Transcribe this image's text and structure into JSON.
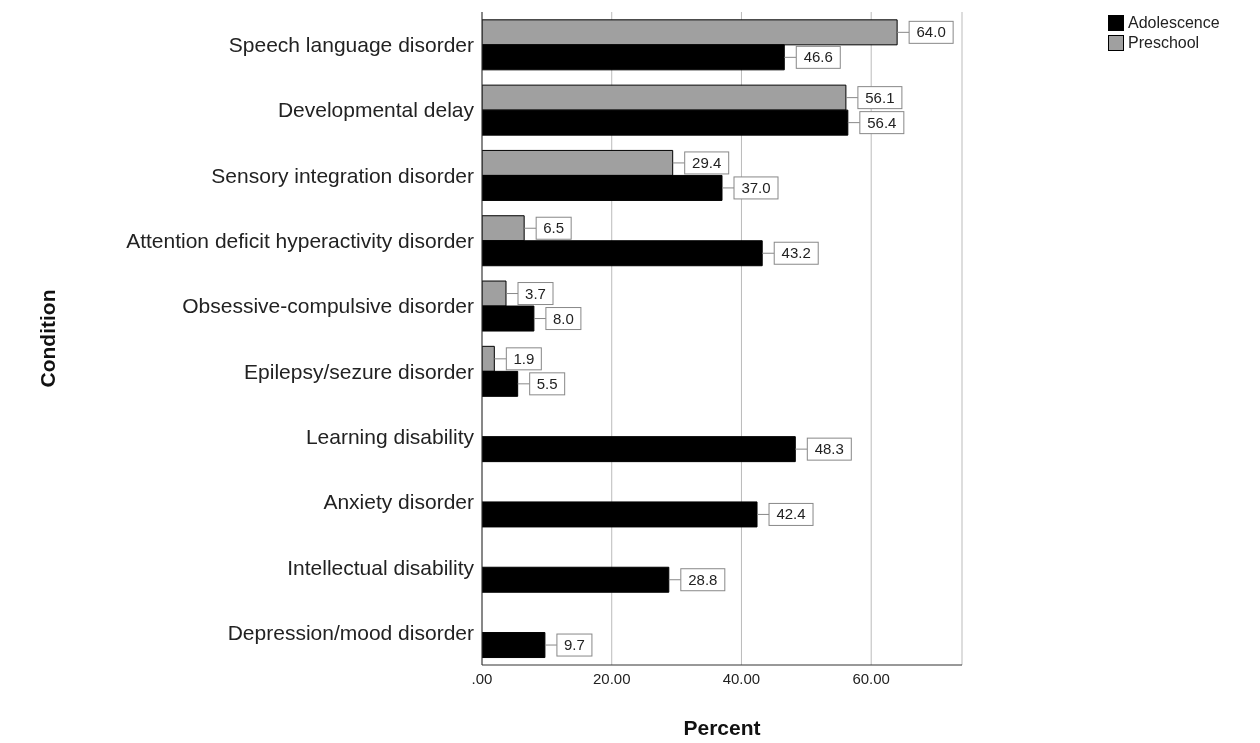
{
  "chart_data": {
    "type": "bar",
    "orientation": "horizontal",
    "xlabel": "Percent",
    "ylabel": "Condition",
    "categories": [
      "Speech language disorder",
      "Developmental delay",
      "Sensory integration disorder",
      "Attention deficit hyperactivity disorder",
      "Obsessive-compulsive disorder",
      "Epilepsy/sezure disorder",
      "Learning disability",
      "Anxiety disorder",
      "Intellectual disability",
      "Depression/mood disorder"
    ],
    "series": [
      {
        "name": "Preschool",
        "color": "#a0a0a0",
        "values": [
          64.0,
          56.1,
          29.4,
          6.5,
          3.7,
          1.9,
          null,
          null,
          null,
          null
        ],
        "value_labels": [
          "64.0",
          "56.1",
          "29.4",
          "6.5",
          "3.7",
          "1.9",
          null,
          null,
          null,
          null
        ]
      },
      {
        "name": "Adolescence",
        "color": "#000000",
        "values": [
          46.6,
          56.4,
          37.0,
          43.2,
          8.0,
          5.5,
          48.3,
          42.4,
          28.8,
          9.7
        ],
        "value_labels": [
          "46.6",
          "56.4",
          "37.0",
          "43.2",
          "8.0",
          "5.5",
          "48.3",
          "42.4",
          "28.8",
          "9.7"
        ]
      }
    ],
    "xlim": [
      0,
      74
    ],
    "xticks": [
      {
        "value": 0,
        "label": ".00"
      },
      {
        "value": 20,
        "label": "20.00"
      },
      {
        "value": 40,
        "label": "40.00"
      },
      {
        "value": 60,
        "label": "60.00"
      }
    ],
    "grid": "x",
    "legend": "top right"
  }
}
